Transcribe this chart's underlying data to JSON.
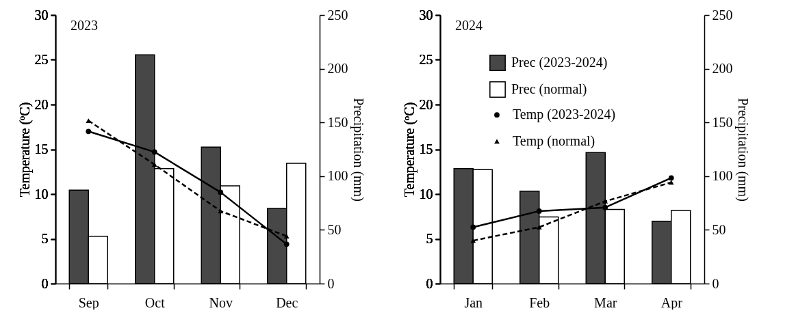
{
  "chart_data": [
    {
      "type": "bar",
      "categories": [
        "Sep",
        "Oct",
        "Nov",
        "Dec"
      ],
      "ylabel": "Temperature (ºC)",
      "y2label": "Precipitation (mm)",
      "ylim": [
        0,
        30
      ],
      "yticks": [
        0,
        5,
        10,
        15,
        20,
        25,
        30
      ],
      "y2lim": [
        0,
        250
      ],
      "y2ticks": [
        0,
        50,
        100,
        150,
        200,
        250
      ],
      "annotations": [
        "2023"
      ],
      "series": [
        {
          "name": "Prec (2023-2024)",
          "axis": "y2",
          "color": "#474747",
          "values": [
            87,
            213,
            127,
            70
          ]
        },
        {
          "name": "Prec (normal)",
          "axis": "y2",
          "color": "#ffffff",
          "values": [
            44,
            107,
            91,
            112
          ]
        },
        {
          "name": "Temp (2023-2024)",
          "type": "line",
          "axis": "y",
          "color": "#000000",
          "marker": "circle",
          "line_style": "solid",
          "values": [
            17.0,
            14.7,
            10.2,
            4.4
          ]
        },
        {
          "name": "Temp (normal)",
          "type": "line",
          "axis": "y",
          "color": "#000000",
          "marker": "triangle",
          "line_style": "dashed",
          "values": [
            18.2,
            13.3,
            8.1,
            5.3
          ]
        }
      ]
    },
    {
      "type": "bar",
      "categories": [
        "Jan",
        "Feb",
        "Mar",
        "Apr"
      ],
      "ylabel": "Temperature (ºC)",
      "y2label": "Precipitation (mm)",
      "ylim": [
        0,
        30
      ],
      "yticks": [
        0,
        5,
        10,
        15,
        20,
        25,
        30
      ],
      "y2lim": [
        0,
        250
      ],
      "y2ticks": [
        0,
        50,
        100,
        150,
        200,
        250
      ],
      "annotations": [
        "2024"
      ],
      "legend": "top",
      "series": [
        {
          "name": "Prec (2023-2024)",
          "axis": "y2",
          "color": "#474747",
          "values": [
            107,
            86,
            122,
            58
          ]
        },
        {
          "name": "Prec (normal)",
          "axis": "y2",
          "color": "#ffffff",
          "values": [
            106,
            62,
            69,
            68
          ]
        },
        {
          "name": "Temp (2023-2024)",
          "type": "line",
          "axis": "y",
          "color": "#000000",
          "marker": "circle",
          "line_style": "solid",
          "values": [
            6.3,
            8.1,
            8.5,
            11.8
          ]
        },
        {
          "name": "Temp (normal)",
          "type": "line",
          "axis": "y",
          "color": "#000000",
          "marker": "triangle",
          "line_style": "dashed",
          "values": [
            4.8,
            6.3,
            9.2,
            11.3
          ]
        }
      ]
    }
  ]
}
